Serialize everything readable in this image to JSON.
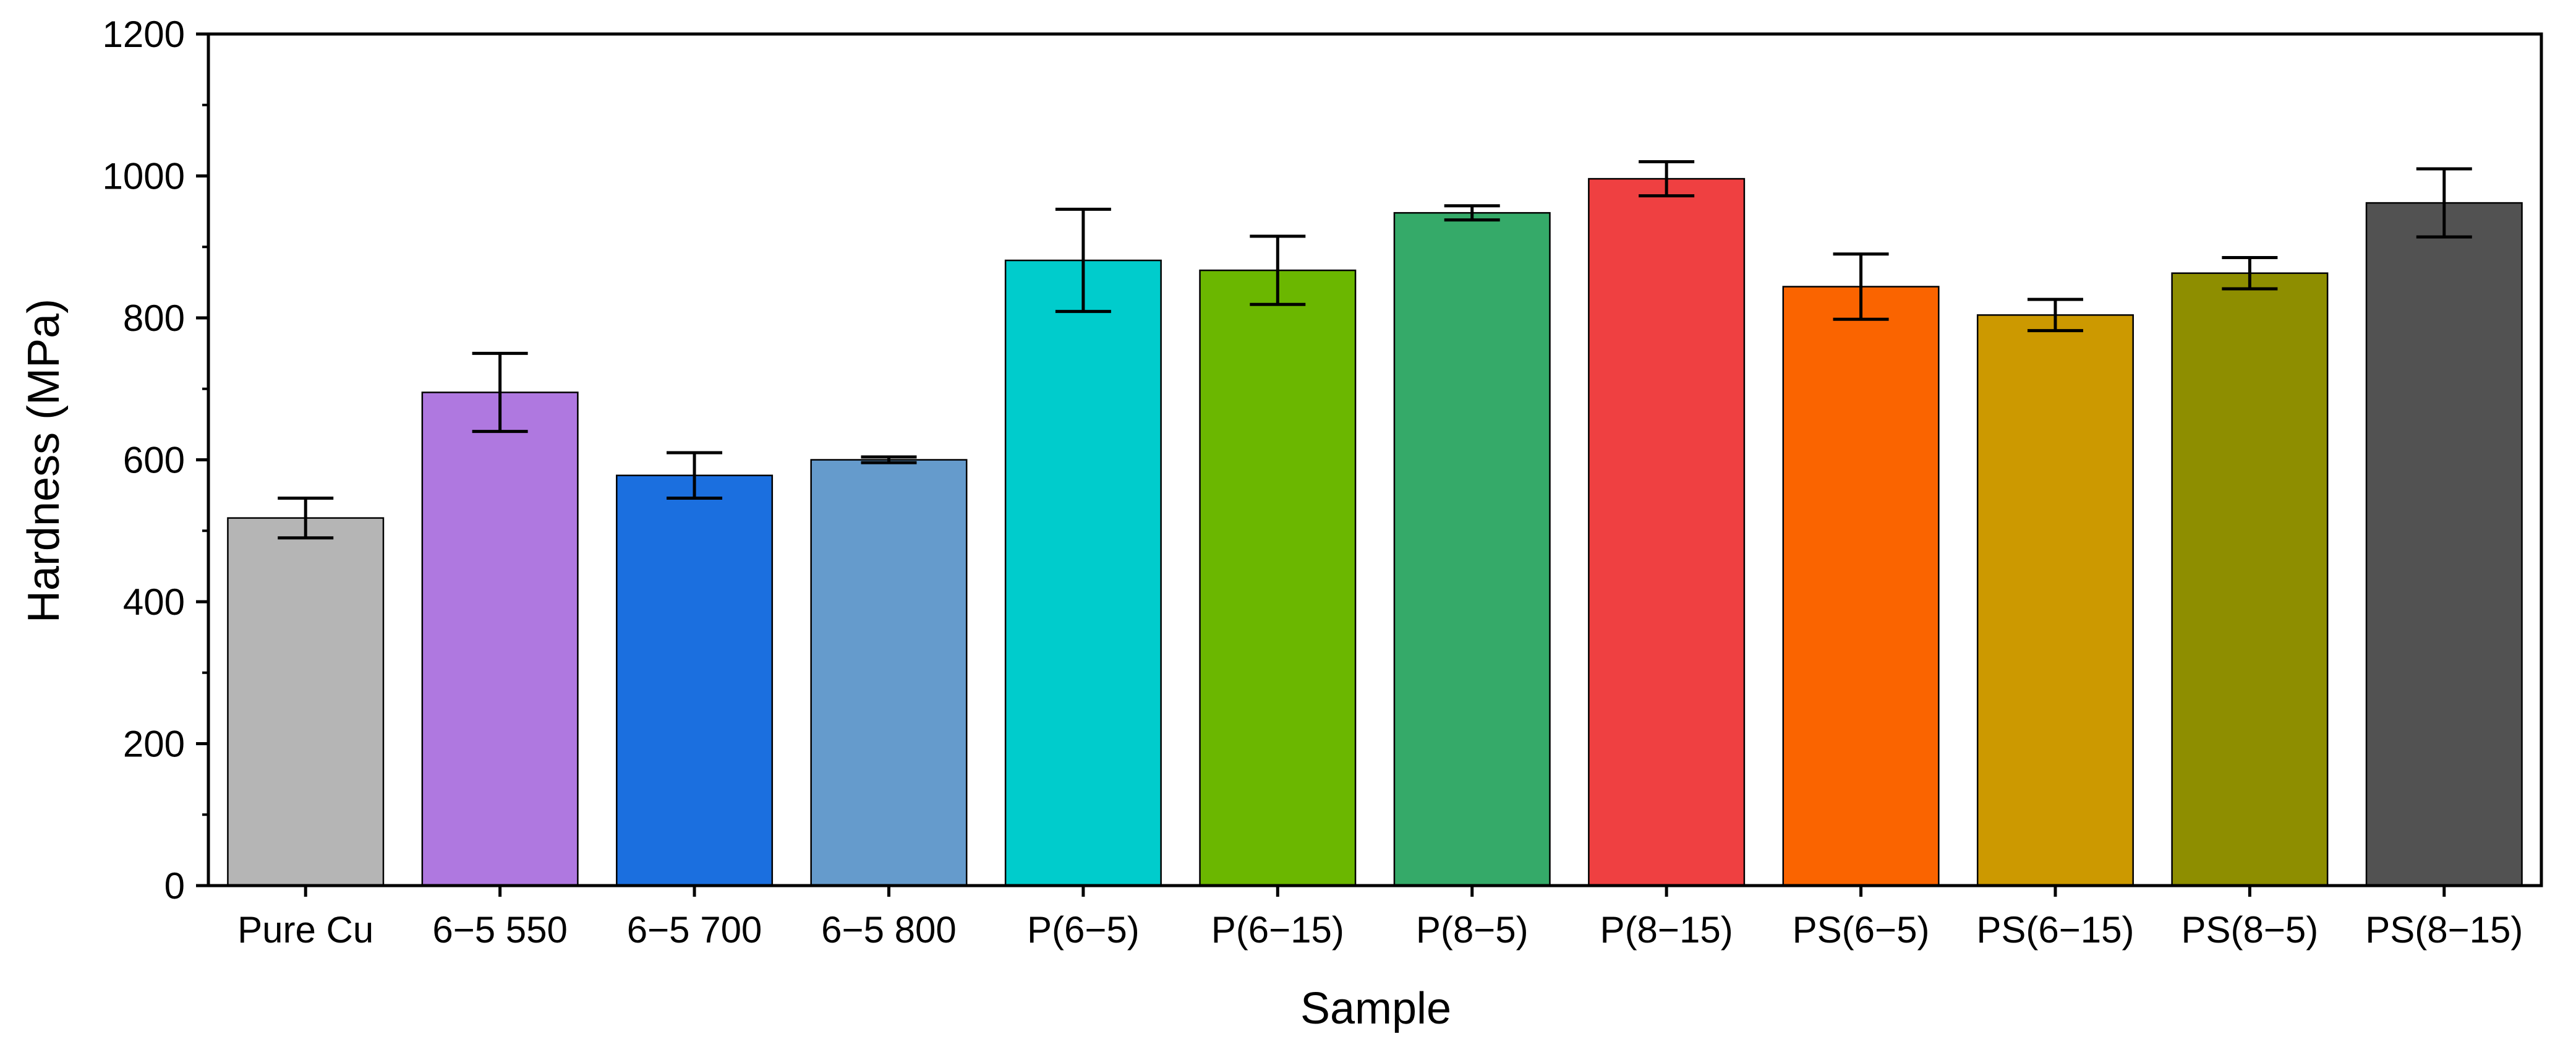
{
  "chart_data": {
    "type": "bar",
    "title": "",
    "xlabel": "Sample",
    "ylabel": "Hardness (MPa)",
    "ylim": [
      0,
      1200
    ],
    "yticks": [
      "0",
      "200",
      "400",
      "600",
      "800",
      "1000",
      "1200"
    ],
    "y_minor_step": 100,
    "grid": false,
    "categories": [
      "Pure Cu",
      "6−5 550",
      "6−5 700",
      "6−5 800",
      "P(6−5)",
      "P(6−15)",
      "P(8−5)",
      "P(8−15)",
      "PS(6−5)",
      "PS(6−15)",
      "PS(8−5)",
      "PS(8−15)"
    ],
    "values": [
      518,
      695,
      578,
      600,
      881,
      867,
      948,
      996,
      844,
      804,
      863,
      962
    ],
    "errors": [
      28,
      55,
      32,
      4,
      72,
      48,
      10,
      24,
      46,
      22,
      22,
      48
    ],
    "colors": [
      "#b5b5b5",
      "#af78e0",
      "#1b6fdf",
      "#659bcc",
      "#00cccc",
      "#6bb700",
      "#35aa69",
      "#ef4041",
      "#fa6400",
      "#cc9900",
      "#8e8e00",
      "#525252"
    ]
  }
}
